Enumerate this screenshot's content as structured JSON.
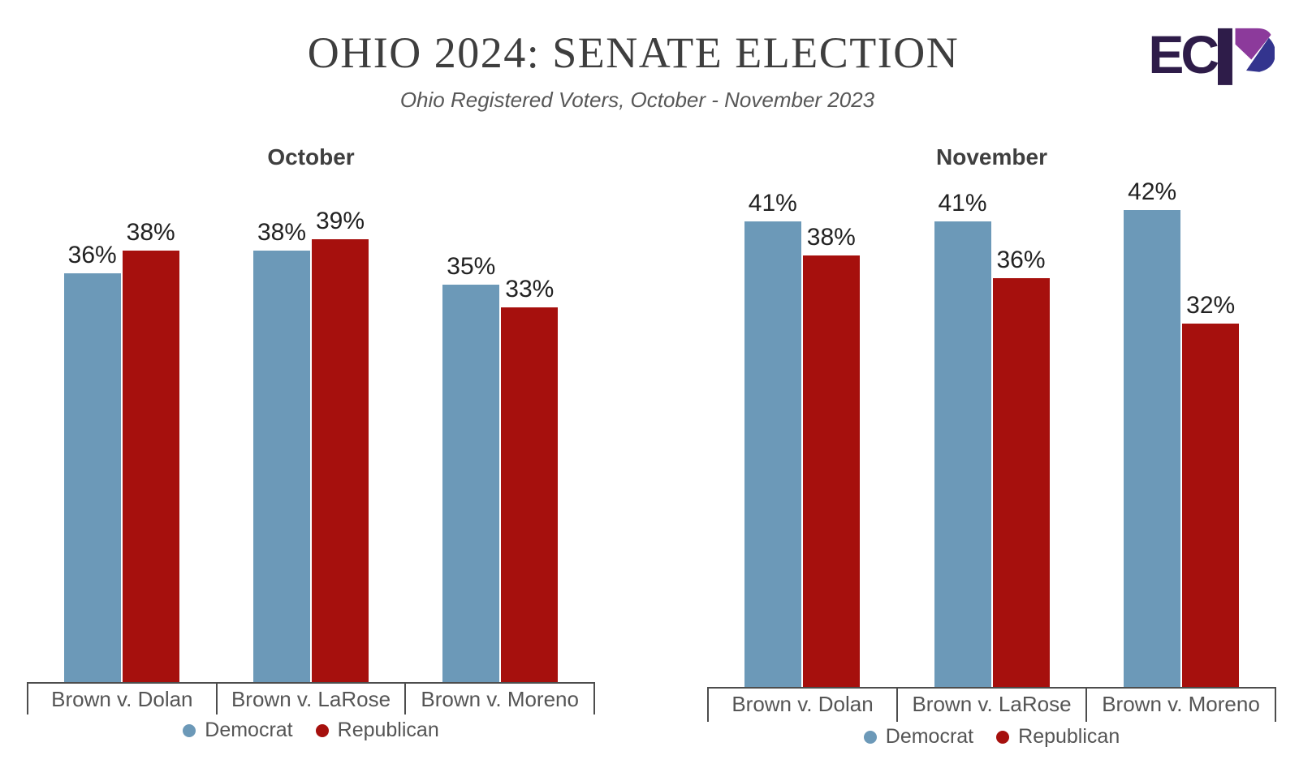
{
  "header": {
    "title": "OHIO 2024: SENATE ELECTION",
    "subtitle": "Ohio Registered Voters, October - November 2023"
  },
  "logo": {
    "text": "EC",
    "letter": "P",
    "dark": "#2E1C49",
    "purple": "#8C3A9B",
    "blue": "#33348E"
  },
  "colors": {
    "democrat": "#6C99B8",
    "republican": "#A6100D",
    "axis": "#4D4D4D",
    "data_label": "#222222",
    "category_label": "#555555",
    "legend_label": "#555555",
    "title": "#3E3E3E",
    "subtitle": "#575757",
    "chart_title": "#3F3F3F"
  },
  "legend": {
    "items": [
      {
        "label": "Democrat",
        "color": "#6C99B8"
      },
      {
        "label": "Republican",
        "color": "#A6100D"
      }
    ]
  },
  "chart_data": [
    {
      "type": "bar",
      "title": "October",
      "categories": [
        "Brown v. Dolan",
        "Brown v. LaRose",
        "Brown v. Moreno"
      ],
      "series": [
        {
          "name": "Democrat",
          "color": "#6C99B8",
          "values": [
            36,
            38,
            35
          ]
        },
        {
          "name": "Republican",
          "color": "#A6100D",
          "values": [
            38,
            39,
            33
          ]
        }
      ],
      "unit": "%",
      "ylim": [
        0,
        45
      ],
      "grid": false,
      "legend_position": "bottom"
    },
    {
      "type": "bar",
      "title": "November",
      "categories": [
        "Brown v. Dolan",
        "Brown v. LaRose",
        "Brown v. Moreno"
      ],
      "series": [
        {
          "name": "Democrat",
          "color": "#6C99B8",
          "values": [
            41,
            41,
            42
          ]
        },
        {
          "name": "Republican",
          "color": "#A6100D",
          "values": [
            38,
            36,
            32
          ]
        }
      ],
      "unit": "%",
      "ylim": [
        0,
        45
      ],
      "grid": false,
      "legend_position": "bottom"
    }
  ]
}
